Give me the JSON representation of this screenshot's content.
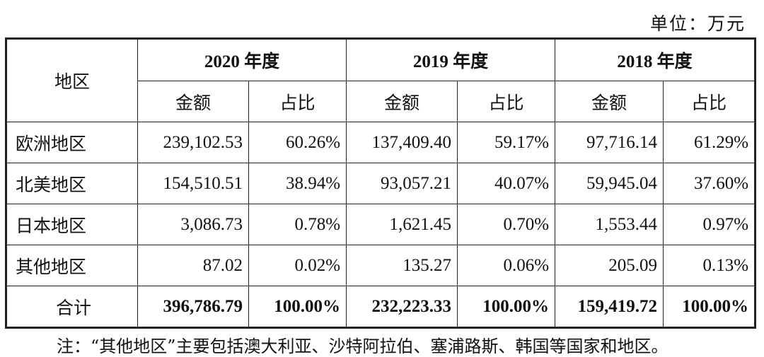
{
  "unit": "单位：万元",
  "header": {
    "region": "地区",
    "years": [
      "2020 年度",
      "2019 年度",
      "2018 年度"
    ],
    "amount": "金额",
    "ratio": "占比"
  },
  "rows": [
    {
      "region": "欧洲地区",
      "cells": [
        "239,102.53",
        "60.26%",
        "137,409.40",
        "59.17%",
        "97,716.14",
        "61.29%"
      ]
    },
    {
      "region": "北美地区",
      "cells": [
        "154,510.51",
        "38.94%",
        "93,057.21",
        "40.07%",
        "59,945.04",
        "37.60%"
      ]
    },
    {
      "region": "日本地区",
      "cells": [
        "3,086.73",
        "0.78%",
        "1,621.45",
        "0.70%",
        "1,553.44",
        "0.97%"
      ]
    },
    {
      "region": "其他地区",
      "cells": [
        "87.02",
        "0.02%",
        "135.27",
        "0.06%",
        "205.09",
        "0.13%"
      ]
    },
    {
      "region": "合计",
      "cells": [
        "396,786.79",
        "100.00%",
        "232,223.33",
        "100.00%",
        "159,419.72",
        "100.00%"
      ]
    }
  ],
  "note": "注：“其他地区”主要包括澳大利亚、沙特阿拉伯、塞浦路斯、韩国等国家和地区。"
}
